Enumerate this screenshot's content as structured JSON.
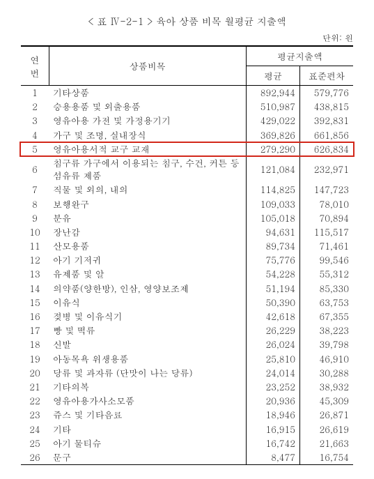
{
  "title": "< 표 Ⅳ-2-1 >  육아 상품 비목 월평균 지출액",
  "unit": "단위: 원",
  "headers": {
    "col1": "연\n번",
    "col2": "상품비목",
    "super": "평균지출액",
    "sub1": "평균",
    "sub2": "표준편차"
  },
  "highlightRow": 5,
  "highlightColor": "#d22619",
  "rows": [
    {
      "i": 1,
      "cat": "기타상품",
      "avg": "892,944",
      "std": "579,776"
    },
    {
      "i": 2,
      "cat": "승용용품 및 외출용품",
      "avg": "510,987",
      "std": "438,815"
    },
    {
      "i": 3,
      "cat": "영유아용 가전 및 가정용기기",
      "avg": "429,022",
      "std": "392,831"
    },
    {
      "i": 4,
      "cat": "가구 및 조명, 실내장식",
      "avg": "369,826",
      "std": "661,856"
    },
    {
      "i": 5,
      "cat": "영유아용서적 교구 교재",
      "avg": "279,290",
      "std": "626,834"
    },
    {
      "i": 6,
      "cat": "침구류 가구에서 이용되는 침구, 수건, 커튼 등 섬유류 제품",
      "avg": "121,084",
      "std": "232,971"
    },
    {
      "i": 7,
      "cat": "직물 및 외의, 내의",
      "avg": "114,825",
      "std": "147,723"
    },
    {
      "i": 8,
      "cat": "보행완구",
      "avg": "109,033",
      "std": "78,010"
    },
    {
      "i": 9,
      "cat": "분유",
      "avg": "105,018",
      "std": "70,894"
    },
    {
      "i": 10,
      "cat": "장난감",
      "avg": "94,631",
      "std": "115,517"
    },
    {
      "i": 11,
      "cat": "산모용품",
      "avg": "89,734",
      "std": "71,461"
    },
    {
      "i": 12,
      "cat": "아기 기저귀",
      "avg": "75,776",
      "std": "99,546"
    },
    {
      "i": 13,
      "cat": "유제품 및 알",
      "avg": "54,228",
      "std": "55,312"
    },
    {
      "i": 14,
      "cat": "의약품(양한방), 인삼, 영양보조제",
      "avg": "51,194",
      "std": "85,330"
    },
    {
      "i": 15,
      "cat": "이유식",
      "avg": "50,390",
      "std": "63,753"
    },
    {
      "i": 16,
      "cat": "젖병 및 이유식기",
      "avg": "42,618",
      "std": "67,355"
    },
    {
      "i": 17,
      "cat": "빵 및 떡류",
      "avg": "26,229",
      "std": "38,223"
    },
    {
      "i": 18,
      "cat": "신발",
      "avg": "26,024",
      "std": "39,798"
    },
    {
      "i": 19,
      "cat": "아동목욕 위생용품",
      "avg": "25,810",
      "std": "46,910"
    },
    {
      "i": 20,
      "cat": "당류 및 과자류 (단맛이 나는 당류)",
      "avg": "24,014",
      "std": "30,288"
    },
    {
      "i": 21,
      "cat": "기타의복",
      "avg": "23,252",
      "std": "38,932"
    },
    {
      "i": 22,
      "cat": "영유아용가사소모품",
      "avg": "20,936",
      "std": "45,309"
    },
    {
      "i": 23,
      "cat": "쥬스 및 기타음료",
      "avg": "18,946",
      "std": "26,871"
    },
    {
      "i": 24,
      "cat": "기타",
      "avg": "16,915",
      "std": "26,619"
    },
    {
      "i": 25,
      "cat": "아기 물티슈",
      "avg": "16,742",
      "std": "21,663"
    },
    {
      "i": 26,
      "cat": "문구",
      "avg": "8,477",
      "std": "16,754"
    }
  ]
}
